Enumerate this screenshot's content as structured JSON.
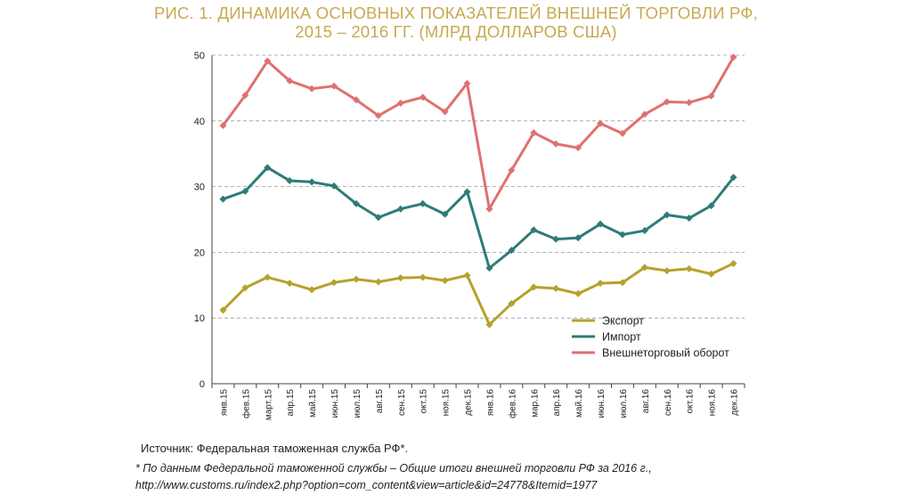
{
  "title": {
    "line1": "РИС. 1. ДИНАМИКА ОСНОВНЫХ ПОКАЗАТЕЛЕЙ ВНЕШНЕЙ ТОРГОВЛИ РФ,",
    "line2": "2015 – 2016 ГГ. (МЛРД ДОЛЛАРОВ США)"
  },
  "colors": {
    "title": "#c8a951",
    "export": "#b5a22a",
    "import": "#2e7b7a",
    "turnover": "#e07070",
    "grid": "#9a9a9a"
  },
  "source": "Источник: Федеральная таможенная служба РФ*.",
  "note": "* По данным Федеральной таможенной службы – Общие итоги внешней торговли РФ за 2016 г., http://www.customs.ru/index2.php?option=com_content&view=article&id=24778&Itemid=1977",
  "chart_data": {
    "type": "line",
    "categories": [
      "янв.15",
      "фев.15",
      "март.15",
      "апр.15",
      "май.15",
      "июн.15",
      "июл.15",
      "авг.15",
      "сен.15",
      "окт.15",
      "ноя.15",
      "дек.15",
      "янв.16",
      "фев.16",
      "мар.16",
      "апр.16",
      "май.16",
      "июн.16",
      "июл.16",
      "авг.16",
      "сен.16",
      "окт.16",
      "ноя.16",
      "дек.16"
    ],
    "ylim": [
      0,
      50
    ],
    "yticks": [
      0,
      10,
      20,
      30,
      40,
      50
    ],
    "grid": true,
    "legend_position": "bottom-right",
    "series": [
      {
        "name": "Экспорт",
        "color": "#b5a22a",
        "values": [
          11.2,
          14.6,
          16.2,
          15.3,
          14.3,
          15.4,
          15.9,
          15.5,
          16.1,
          16.2,
          15.7,
          16.5,
          9.0,
          12.2,
          14.7,
          14.5,
          13.7,
          15.3,
          15.4,
          17.7,
          17.2,
          17.5,
          16.7,
          18.3
        ]
      },
      {
        "name": "Импорт",
        "color": "#2e7b7a",
        "values": [
          28.1,
          29.3,
          32.9,
          30.9,
          30.7,
          30.1,
          27.4,
          25.3,
          26.6,
          27.4,
          25.8,
          29.2,
          17.6,
          20.3,
          23.4,
          22.0,
          22.2,
          24.3,
          22.7,
          23.3,
          25.7,
          25.2,
          27.1,
          31.4
        ]
      },
      {
        "name": "Внешнеторговый оборот",
        "color": "#e07070",
        "values": [
          39.3,
          43.9,
          49.1,
          46.1,
          44.9,
          45.3,
          43.2,
          40.8,
          42.7,
          43.6,
          41.4,
          45.7,
          26.6,
          32.5,
          38.2,
          36.5,
          35.9,
          39.6,
          38.1,
          41.0,
          42.9,
          42.8,
          43.8,
          49.7
        ]
      }
    ]
  }
}
